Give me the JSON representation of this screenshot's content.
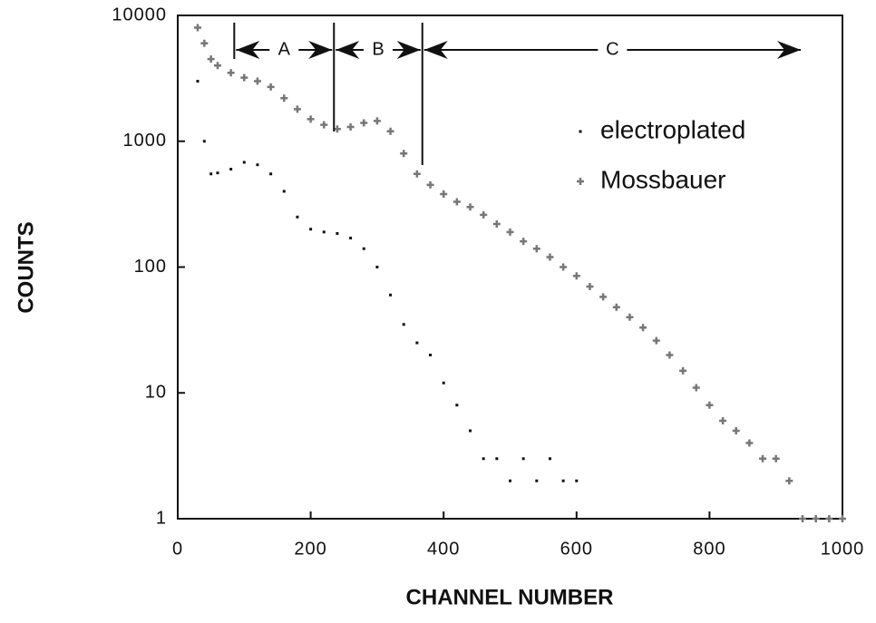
{
  "chart_data": {
    "type": "scatter",
    "x_label": "CHANNEL NUMBER",
    "y_label": "COUNTS",
    "xlim": [
      0,
      1000
    ],
    "xticks": [
      0,
      200,
      400,
      600,
      800,
      1000
    ],
    "ylim": [
      1,
      10000
    ],
    "yticks": [
      1,
      10,
      100,
      1000,
      10000
    ],
    "log_y": true,
    "legend": "upper right",
    "regions": [
      {
        "label": "A",
        "from": 85,
        "to": 235
      },
      {
        "label": "B",
        "from": 235,
        "to": 368
      },
      {
        "label": "C",
        "from": 368,
        "to": 940
      }
    ],
    "series": [
      {
        "name": "electroplated",
        "color": "#111111",
        "marker": "dot",
        "x": [
          30,
          40,
          50,
          60,
          80,
          100,
          120,
          140,
          160,
          180,
          200,
          220,
          240,
          260,
          280,
          300,
          320,
          340,
          360,
          380,
          400,
          420,
          440,
          460,
          480,
          500,
          520,
          540,
          560,
          580,
          600
        ],
        "values": [
          3000,
          1000,
          550,
          560,
          600,
          680,
          650,
          550,
          400,
          250,
          200,
          190,
          185,
          170,
          140,
          100,
          60,
          35,
          25,
          20,
          12,
          8,
          5,
          3,
          3,
          2,
          3,
          2,
          3,
          2,
          2
        ]
      },
      {
        "name": "Mossbauer",
        "color": "#777777",
        "marker": "plus",
        "x": [
          30,
          40,
          50,
          60,
          80,
          100,
          120,
          140,
          160,
          180,
          200,
          220,
          240,
          260,
          280,
          300,
          320,
          340,
          360,
          380,
          400,
          420,
          440,
          460,
          480,
          500,
          520,
          540,
          560,
          580,
          600,
          620,
          640,
          660,
          680,
          700,
          720,
          740,
          760,
          780,
          800,
          820,
          840,
          860,
          880,
          900,
          920,
          940,
          960,
          980,
          1000
        ],
        "values": [
          8000,
          6000,
          4500,
          4000,
          3500,
          3200,
          3000,
          2700,
          2200,
          1800,
          1500,
          1350,
          1250,
          1300,
          1400,
          1450,
          1200,
          800,
          550,
          450,
          380,
          330,
          300,
          260,
          220,
          190,
          160,
          140,
          120,
          100,
          85,
          70,
          58,
          48,
          40,
          33,
          26,
          20,
          15,
          11,
          8,
          6,
          5,
          4,
          3,
          3,
          2,
          1,
          1,
          1,
          1
        ]
      }
    ]
  }
}
